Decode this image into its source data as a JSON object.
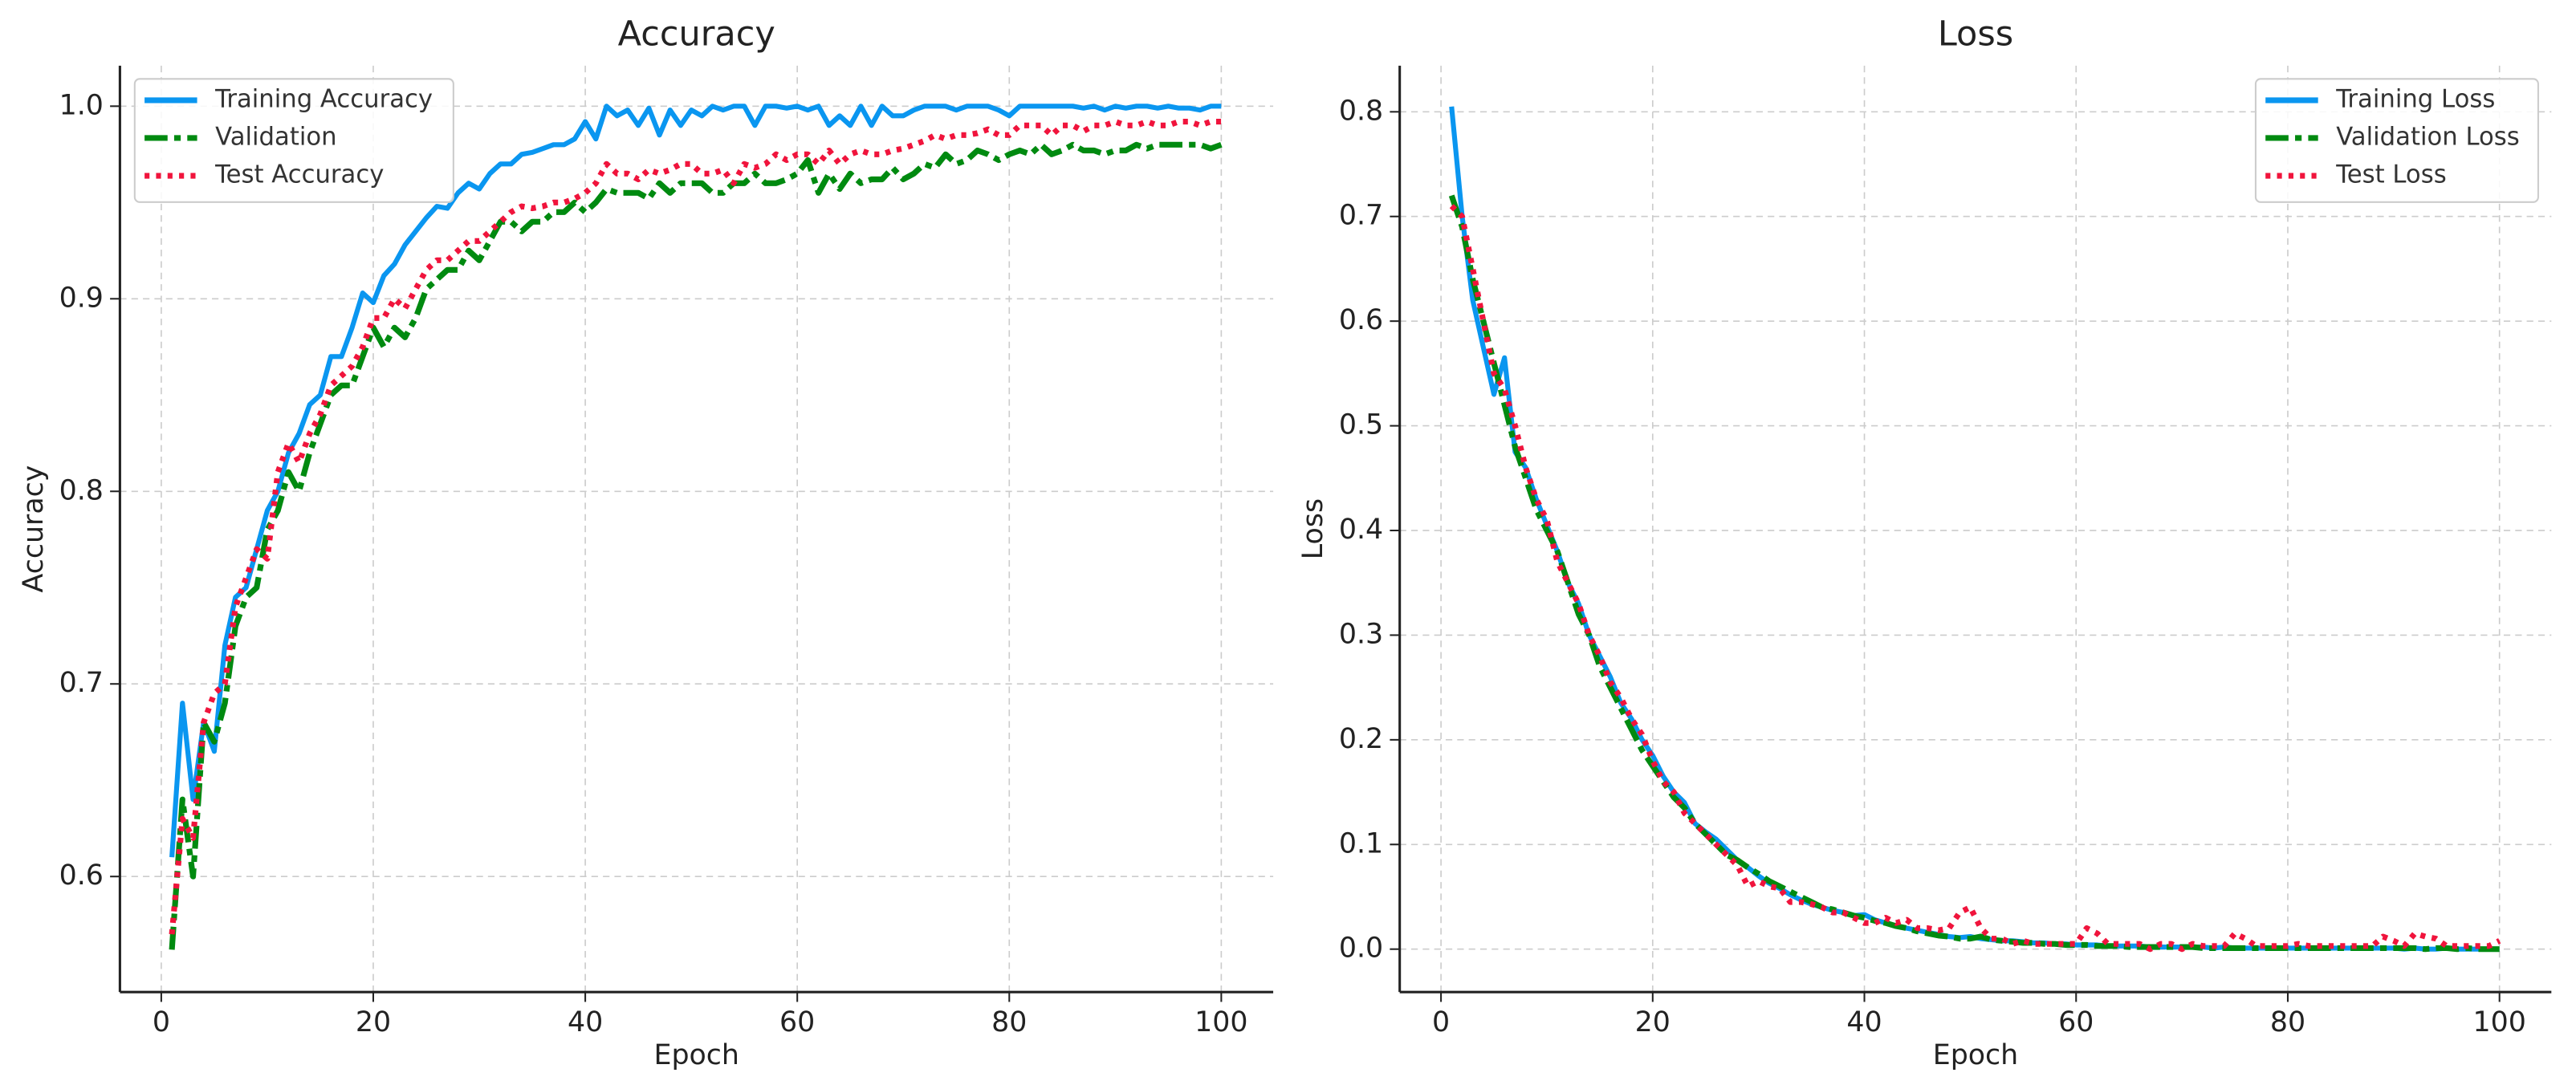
{
  "chart_data": [
    {
      "type": "line",
      "title": "Accuracy",
      "x_label": "Epoch",
      "y_label": "Accuracy",
      "grid": true,
      "legend": "upper left",
      "x": [
        1,
        2,
        3,
        4,
        5,
        6,
        7,
        8,
        9,
        10,
        11,
        12,
        13,
        14,
        15,
        16,
        17,
        18,
        19,
        20,
        21,
        22,
        23,
        24,
        25,
        26,
        27,
        28,
        29,
        30,
        31,
        32,
        33,
        34,
        35,
        36,
        37,
        38,
        39,
        40,
        41,
        42,
        43,
        44,
        45,
        46,
        47,
        48,
        49,
        50,
        51,
        52,
        53,
        54,
        55,
        56,
        57,
        58,
        59,
        60,
        61,
        62,
        63,
        64,
        65,
        66,
        67,
        68,
        69,
        70,
        71,
        72,
        73,
        74,
        75,
        76,
        77,
        78,
        79,
        80,
        81,
        82,
        83,
        84,
        85,
        86,
        87,
        88,
        89,
        90,
        91,
        92,
        93,
        94,
        95,
        96,
        97,
        98,
        99,
        100
      ],
      "xlim": [
        -3.9,
        104.9
      ],
      "xticks": [
        0,
        20,
        40,
        60,
        80,
        100
      ],
      "ylim": [
        0.54,
        1.021
      ],
      "yticks": [
        0.6,
        0.7,
        0.8,
        0.9,
        {
          "value": 1,
          "label": "1.0"
        }
      ],
      "series": [
        {
          "name": "Training Accuracy",
          "color": "#0a96f0",
          "linestyle": "solid",
          "values": [
            0.61,
            0.69,
            0.64,
            0.68,
            0.665,
            0.72,
            0.745,
            0.75,
            0.77,
            0.79,
            0.8,
            0.82,
            0.83,
            0.845,
            0.85,
            0.87,
            0.87,
            0.885,
            0.903,
            0.898,
            0.912,
            0.918,
            0.928,
            0.935,
            0.942,
            0.948,
            0.947,
            0.955,
            0.96,
            0.957,
            0.965,
            0.97,
            0.97,
            0.975,
            0.976,
            0.978,
            0.98,
            0.98,
            0.983,
            0.992,
            0.983,
            1.0,
            0.995,
            0.998,
            0.99,
            0.999,
            0.985,
            0.998,
            0.99,
            0.998,
            0.995,
            1.0,
            0.998,
            1.0,
            1.0,
            0.99,
            1.0,
            1.0,
            0.999,
            1.0,
            0.998,
            1.0,
            0.99,
            0.995,
            0.99,
            1.0,
            0.99,
            1.0,
            0.995,
            0.995,
            0.998,
            1.0,
            1.0,
            1.0,
            0.998,
            1.0,
            1.0,
            1.0,
            0.998,
            0.995,
            1.0,
            1.0,
            1.0,
            1.0,
            1.0,
            1.0,
            0.999,
            1.0,
            0.998,
            1.0,
            0.999,
            1.0,
            1.0,
            0.999,
            1.0,
            0.999,
            0.999,
            0.998,
            1.0,
            1.0
          ]
        },
        {
          "name": "Validation",
          "color": "#008a10",
          "linestyle": "dashdot",
          "values": [
            0.562,
            0.64,
            0.6,
            0.68,
            0.67,
            0.69,
            0.73,
            0.745,
            0.75,
            0.78,
            0.79,
            0.81,
            0.8,
            0.82,
            0.835,
            0.85,
            0.855,
            0.855,
            0.87,
            0.885,
            0.875,
            0.885,
            0.88,
            0.89,
            0.905,
            0.91,
            0.915,
            0.915,
            0.925,
            0.92,
            0.93,
            0.94,
            0.94,
            0.935,
            0.94,
            0.94,
            0.945,
            0.945,
            0.95,
            0.945,
            0.95,
            0.957,
            0.955,
            0.955,
            0.955,
            0.952,
            0.96,
            0.955,
            0.96,
            0.96,
            0.96,
            0.955,
            0.955,
            0.96,
            0.96,
            0.965,
            0.96,
            0.96,
            0.962,
            0.965,
            0.972,
            0.955,
            0.965,
            0.957,
            0.965,
            0.96,
            0.962,
            0.962,
            0.968,
            0.962,
            0.965,
            0.97,
            0.968,
            0.975,
            0.97,
            0.972,
            0.977,
            0.975,
            0.972,
            0.975,
            0.977,
            0.975,
            0.98,
            0.975,
            0.977,
            0.98,
            0.977,
            0.977,
            0.975,
            0.977,
            0.977,
            0.98,
            0.978,
            0.98,
            0.98,
            0.98,
            0.98,
            0.98,
            0.978,
            0.98
          ]
        },
        {
          "name": "Test Accuracy",
          "color": "#f0143c",
          "linestyle": "dotted",
          "values": [
            0.57,
            0.63,
            0.62,
            0.68,
            0.695,
            0.7,
            0.74,
            0.755,
            0.77,
            0.765,
            0.81,
            0.825,
            0.815,
            0.83,
            0.84,
            0.855,
            0.86,
            0.865,
            0.875,
            0.89,
            0.89,
            0.9,
            0.895,
            0.905,
            0.915,
            0.92,
            0.92,
            0.925,
            0.93,
            0.93,
            0.935,
            0.94,
            0.945,
            0.948,
            0.947,
            0.948,
            0.95,
            0.95,
            0.952,
            0.955,
            0.96,
            0.97,
            0.965,
            0.965,
            0.962,
            0.967,
            0.965,
            0.967,
            0.97,
            0.97,
            0.965,
            0.965,
            0.967,
            0.96,
            0.97,
            0.968,
            0.97,
            0.975,
            0.972,
            0.975,
            0.975,
            0.97,
            0.977,
            0.97,
            0.975,
            0.977,
            0.975,
            0.975,
            0.977,
            0.978,
            0.98,
            0.982,
            0.985,
            0.983,
            0.985,
            0.985,
            0.986,
            0.988,
            0.985,
            0.985,
            0.99,
            0.99,
            0.99,
            0.985,
            0.99,
            0.99,
            0.987,
            0.99,
            0.99,
            0.992,
            0.99,
            0.99,
            0.992,
            0.99,
            0.99,
            0.992,
            0.992,
            0.99,
            0.992,
            0.992
          ]
        }
      ]
    },
    {
      "type": "line",
      "title": "Loss",
      "x_label": "Epoch",
      "y_label": "Loss",
      "grid": true,
      "legend": "upper right",
      "x": [
        1,
        2,
        3,
        4,
        5,
        6,
        7,
        8,
        9,
        10,
        11,
        12,
        13,
        14,
        15,
        16,
        17,
        18,
        19,
        20,
        21,
        22,
        23,
        24,
        25,
        26,
        27,
        28,
        29,
        30,
        31,
        32,
        33,
        34,
        35,
        36,
        37,
        38,
        39,
        40,
        41,
        42,
        43,
        44,
        45,
        46,
        47,
        48,
        49,
        50,
        51,
        52,
        53,
        54,
        55,
        56,
        57,
        58,
        59,
        60,
        61,
        62,
        63,
        64,
        65,
        66,
        67,
        68,
        69,
        70,
        71,
        72,
        73,
        74,
        75,
        76,
        77,
        78,
        79,
        80,
        81,
        82,
        83,
        84,
        85,
        86,
        87,
        88,
        89,
        90,
        91,
        92,
        93,
        94,
        95,
        96,
        97,
        98,
        99,
        100
      ],
      "xlim": [
        -3.9,
        104.9
      ],
      "xticks": [
        0,
        20,
        40,
        60,
        80,
        100
      ],
      "ylim": [
        -0.041,
        0.844
      ],
      "yticks": [
        {
          "value": 0,
          "label": "0.0"
        },
        0.1,
        0.2,
        0.3,
        0.4,
        0.5,
        0.6,
        0.7,
        0.8
      ],
      "series": [
        {
          "name": "Training Loss",
          "color": "#0a96f0",
          "linestyle": "solid",
          "values": [
            0.805,
            0.7,
            0.62,
            0.575,
            0.53,
            0.565,
            0.475,
            0.46,
            0.43,
            0.405,
            0.38,
            0.35,
            0.33,
            0.3,
            0.28,
            0.26,
            0.235,
            0.22,
            0.2,
            0.185,
            0.165,
            0.15,
            0.14,
            0.12,
            0.112,
            0.105,
            0.095,
            0.085,
            0.078,
            0.07,
            0.063,
            0.058,
            0.052,
            0.047,
            0.043,
            0.04,
            0.037,
            0.035,
            0.032,
            0.033,
            0.028,
            0.025,
            0.022,
            0.02,
            0.018,
            0.016,
            0.014,
            0.012,
            0.011,
            0.012,
            0.01,
            0.009,
            0.008,
            0.008,
            0.007,
            0.006,
            0.006,
            0.005,
            0.005,
            0.004,
            0.004,
            0.004,
            0.003,
            0.003,
            0.003,
            0.003,
            0.002,
            0.002,
            0.002,
            0.002,
            0.002,
            0.002,
            0.001,
            0.002,
            0.001,
            0.001,
            0.001,
            0.001,
            0.001,
            0.001,
            0.001,
            0.001,
            0.001,
            0.001,
            0.001,
            0.001,
            0.001,
            0.001,
            0.001,
            0.001,
            0,
            0.001,
            0,
            0,
            0.001,
            0,
            0,
            0,
            0,
            0
          ]
        },
        {
          "name": "Validation Loss",
          "color": "#008a10",
          "linestyle": "dashdot",
          "values": [
            0.72,
            0.69,
            0.64,
            0.6,
            0.56,
            0.52,
            0.48,
            0.45,
            0.42,
            0.4,
            0.38,
            0.35,
            0.32,
            0.3,
            0.27,
            0.25,
            0.23,
            0.21,
            0.19,
            0.175,
            0.16,
            0.145,
            0.135,
            0.12,
            0.11,
            0.1,
            0.09,
            0.085,
            0.078,
            0.072,
            0.065,
            0.06,
            0.055,
            0.05,
            0.045,
            0.04,
            0.038,
            0.035,
            0.032,
            0.03,
            0.027,
            0.025,
            0.022,
            0.02,
            0.017,
            0.015,
            0.013,
            0.012,
            0.01,
            0.01,
            0.012,
            0.009,
            0.008,
            0.007,
            0.006,
            0.006,
            0.005,
            0.005,
            0.004,
            0.004,
            0.004,
            0.003,
            0.003,
            0.003,
            0.002,
            0.002,
            0.002,
            0.002,
            0.002,
            0.002,
            0.002,
            0.001,
            0.001,
            0.001,
            0.001,
            0.001,
            0.001,
            0.001,
            0.001,
            0.001,
            0.001,
            0.001,
            0.001,
            0.001,
            0.001,
            0.001,
            0.001,
            0.001,
            0.001,
            0.001,
            0.001,
            0.001,
            0,
            0.001,
            0.001,
            0,
            0.001,
            0,
            0,
            0
          ]
        },
        {
          "name": "Test Loss",
          "color": "#f0143c",
          "linestyle": "dotted",
          "values": [
            0.71,
            0.7,
            0.65,
            0.6,
            0.55,
            0.535,
            0.5,
            0.46,
            0.43,
            0.41,
            0.37,
            0.35,
            0.33,
            0.3,
            0.28,
            0.255,
            0.24,
            0.22,
            0.205,
            0.18,
            0.16,
            0.15,
            0.13,
            0.12,
            0.11,
            0.1,
            0.09,
            0.08,
            0.06,
            0.065,
            0.06,
            0.058,
            0.045,
            0.045,
            0.043,
            0.04,
            0.035,
            0.035,
            0.03,
            0.025,
            0.025,
            0.03,
            0.025,
            0.028,
            0.02,
            0.02,
            0.018,
            0.02,
            0.035,
            0.04,
            0.02,
            0.01,
            0.01,
            0.005,
            0.008,
            0.005,
            0.005,
            0.005,
            0.005,
            0.005,
            0.02,
            0.015,
            0.005,
            0.005,
            0.005,
            0.005,
            0,
            0.005,
            0.005,
            0,
            0.005,
            0.003,
            0.003,
            0.003,
            0.015,
            0.01,
            0.003,
            0.003,
            0.003,
            0.003,
            0.005,
            0.003,
            0.003,
            0.003,
            0.003,
            0.003,
            0.003,
            0.003,
            0.012,
            0.008,
            0.003,
            0.015,
            0.012,
            0.01,
            0.003,
            0.003,
            0.003,
            0.003,
            0.003,
            0.008
          ]
        }
      ]
    }
  ]
}
